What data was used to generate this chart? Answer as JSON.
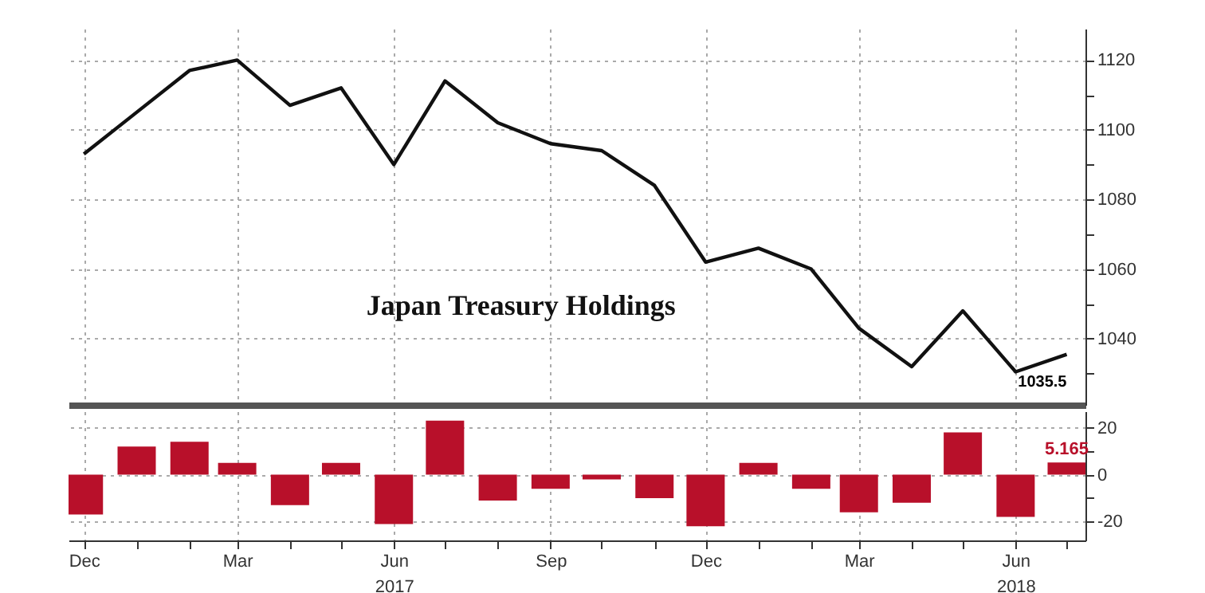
{
  "chart_data": [
    {
      "type": "line",
      "x": [
        "2016-12",
        "2017-01",
        "2017-02",
        "2017-03",
        "2017-04",
        "2017-05",
        "2017-06",
        "2017-07",
        "2017-08",
        "2017-09",
        "2017-10",
        "2017-11",
        "2017-12",
        "2018-01",
        "2018-02",
        "2018-03",
        "2018-04",
        "2018-05",
        "2018-06",
        "2018-07"
      ],
      "series": [
        {
          "color": "#111111",
          "values": [
            1093,
            1105,
            1117,
            1120,
            1107,
            1112,
            1090,
            1114,
            1102,
            1096,
            1094,
            1084,
            1062,
            1066,
            1060,
            1043,
            1032,
            1048,
            1030.5,
            1035.5
          ]
        }
      ],
      "xlim": [
        "2016-11-22",
        "2018-07-12"
      ],
      "xticks": [
        {
          "value": "2016-12",
          "label": null
        },
        {
          "value": "2017-03",
          "label": null
        },
        {
          "value": "2017-06",
          "label": null
        },
        {
          "value": "2017-09",
          "label": null
        },
        {
          "value": "2017-12",
          "label": null
        },
        {
          "value": "2018-03",
          "label": null
        },
        {
          "value": "2018-06",
          "label": null
        }
      ],
      "ylim": [
        1021,
        1129
      ],
      "yticks": [
        {
          "value": 1030,
          "label": null
        },
        1040,
        {
          "value": 1050,
          "label": null
        },
        1060,
        {
          "value": 1070,
          "label": null
        },
        1080,
        {
          "value": 1090,
          "label": null
        },
        1100,
        {
          "value": 1110,
          "label": null
        },
        1120
      ],
      "grid": true,
      "tick_labels": "y",
      "annotations": [
        "Japan Treasury Holdings",
        {
          "text": "1035.5",
          "x": "2018-07",
          "y": 1035.5
        }
      ]
    },
    {
      "type": "bar",
      "x": [
        "2016-12",
        "2017-01",
        "2017-02",
        "2017-03",
        "2017-04",
        "2017-05",
        "2017-06",
        "2017-07",
        "2017-08",
        "2017-09",
        "2017-10",
        "2017-11",
        "2017-12",
        "2018-01",
        "2018-02",
        "2018-03",
        "2018-04",
        "2018-05",
        "2018-06",
        "2018-07"
      ],
      "series": [
        {
          "color": "#b8102a",
          "values": [
            -17,
            12,
            14,
            5,
            -13,
            5,
            -21,
            23,
            -11,
            -6,
            -2,
            -10,
            -22,
            5,
            -6,
            -16,
            -12,
            18,
            -18,
            5.165
          ],
          "value_labels": [
            null,
            null,
            null,
            null,
            null,
            null,
            null,
            null,
            null,
            null,
            null,
            null,
            null,
            null,
            null,
            null,
            null,
            null,
            null,
            "5.165"
          ]
        }
      ],
      "xlim": [
        "2016-11-22",
        "2018-07-12"
      ],
      "xticks": [
        {
          "value": "2016-12",
          "label": "Dec"
        },
        {
          "value": "2017-01",
          "label": null
        },
        {
          "value": "2017-02",
          "label": null
        },
        {
          "value": "2017-03",
          "label": "Mar"
        },
        {
          "value": "2017-04",
          "label": null
        },
        {
          "value": "2017-05",
          "label": null
        },
        {
          "value": "2017-06",
          "label": "Jun\n2017"
        },
        {
          "value": "2017-07",
          "label": null
        },
        {
          "value": "2017-08",
          "label": null
        },
        {
          "value": "2017-09",
          "label": "Sep"
        },
        {
          "value": "2017-10",
          "label": null
        },
        {
          "value": "2017-11",
          "label": null
        },
        {
          "value": "2017-12",
          "label": "Dec"
        },
        {
          "value": "2018-01",
          "label": null
        },
        {
          "value": "2018-02",
          "label": null
        },
        {
          "value": "2018-03",
          "label": "Mar"
        },
        {
          "value": "2018-04",
          "label": null
        },
        {
          "value": "2018-05",
          "label": null
        },
        {
          "value": "2018-06",
          "label": "Jun\n2018"
        },
        {
          "value": "2018-07",
          "label": null
        }
      ],
      "ylim": [
        -28,
        27
      ],
      "yticks": [
        -20,
        {
          "value": -10,
          "label": null
        },
        0,
        {
          "value": 10,
          "label": null
        },
        20
      ],
      "grid": true
    }
  ]
}
